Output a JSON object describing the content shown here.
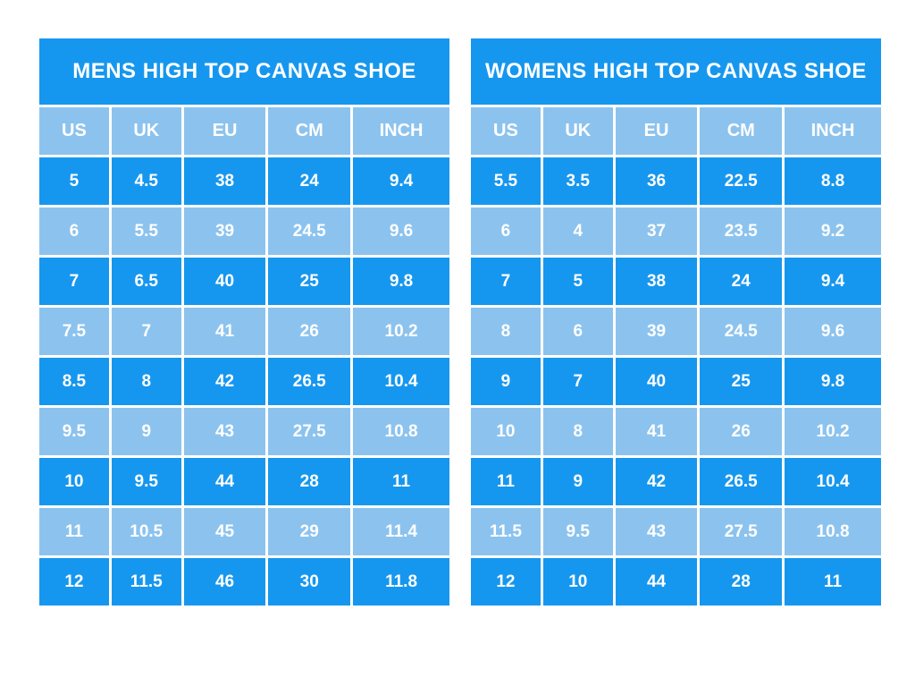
{
  "colors": {
    "dark_blue": "#1697ef",
    "light_blue": "#8cc3ee",
    "text": "#ffffff",
    "divider": "#ffffff",
    "page_background": "#ffffff"
  },
  "chart_data": [
    {
      "type": "table",
      "title": "MENS HIGH TOP CANVAS SHOE",
      "columns": [
        "US",
        "UK",
        "EU",
        "CM",
        "INCH"
      ],
      "rows": [
        [
          "5",
          "4.5",
          "38",
          "24",
          "9.4"
        ],
        [
          "6",
          "5.5",
          "39",
          "24.5",
          "9.6"
        ],
        [
          "7",
          "6.5",
          "40",
          "25",
          "9.8"
        ],
        [
          "7.5",
          "7",
          "41",
          "26",
          "10.2"
        ],
        [
          "8.5",
          "8",
          "42",
          "26.5",
          "10.4"
        ],
        [
          "9.5",
          "9",
          "43",
          "27.5",
          "10.8"
        ],
        [
          "10",
          "9.5",
          "44",
          "28",
          "11"
        ],
        [
          "11",
          "10.5",
          "45",
          "29",
          "11.4"
        ],
        [
          "12",
          "11.5",
          "46",
          "30",
          "11.8"
        ]
      ]
    },
    {
      "type": "table",
      "title": "WOMENS HIGH TOP CANVAS SHOE",
      "columns": [
        "US",
        "UK",
        "EU",
        "CM",
        "INCH"
      ],
      "rows": [
        [
          "5.5",
          "3.5",
          "36",
          "22.5",
          "8.8"
        ],
        [
          "6",
          "4",
          "37",
          "23.5",
          "9.2"
        ],
        [
          "7",
          "5",
          "38",
          "24",
          "9.4"
        ],
        [
          "8",
          "6",
          "39",
          "24.5",
          "9.6"
        ],
        [
          "9",
          "7",
          "40",
          "25",
          "9.8"
        ],
        [
          "10",
          "8",
          "41",
          "26",
          "10.2"
        ],
        [
          "11",
          "9",
          "42",
          "26.5",
          "10.4"
        ],
        [
          "11.5",
          "9.5",
          "43",
          "27.5",
          "10.8"
        ],
        [
          "12",
          "10",
          "44",
          "28",
          "11"
        ]
      ]
    }
  ]
}
